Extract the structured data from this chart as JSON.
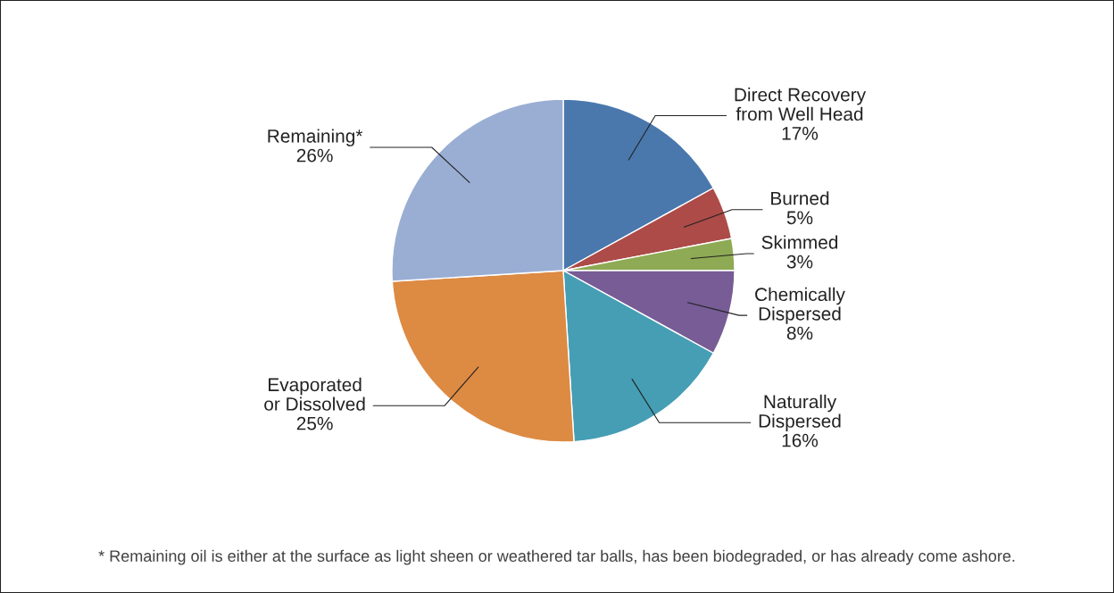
{
  "chart_data": {
    "type": "pie",
    "categories": [
      "Direct Recovery\nfrom Well Head",
      "Burned",
      "Skimmed",
      "Chemically\nDispersed",
      "Naturally\nDispersed",
      "Evaporated\nor Dissolved",
      "Remaining*"
    ],
    "values": [
      17,
      5,
      3,
      8,
      16,
      25,
      26
    ],
    "colors": [
      "#4a78ad",
      "#ad4b48",
      "#8eaa54",
      "#775c96",
      "#469eb5",
      "#dd8a43",
      "#9aaed4"
    ],
    "value_labels": [
      "17%",
      "5%",
      "3%",
      "8%",
      "16%",
      "25%",
      "26%"
    ],
    "annotations": [
      "* Remaining oil is either at the surface as light sheen or weathered tar balls, has been biodegraded, or has already come ashore."
    ]
  }
}
